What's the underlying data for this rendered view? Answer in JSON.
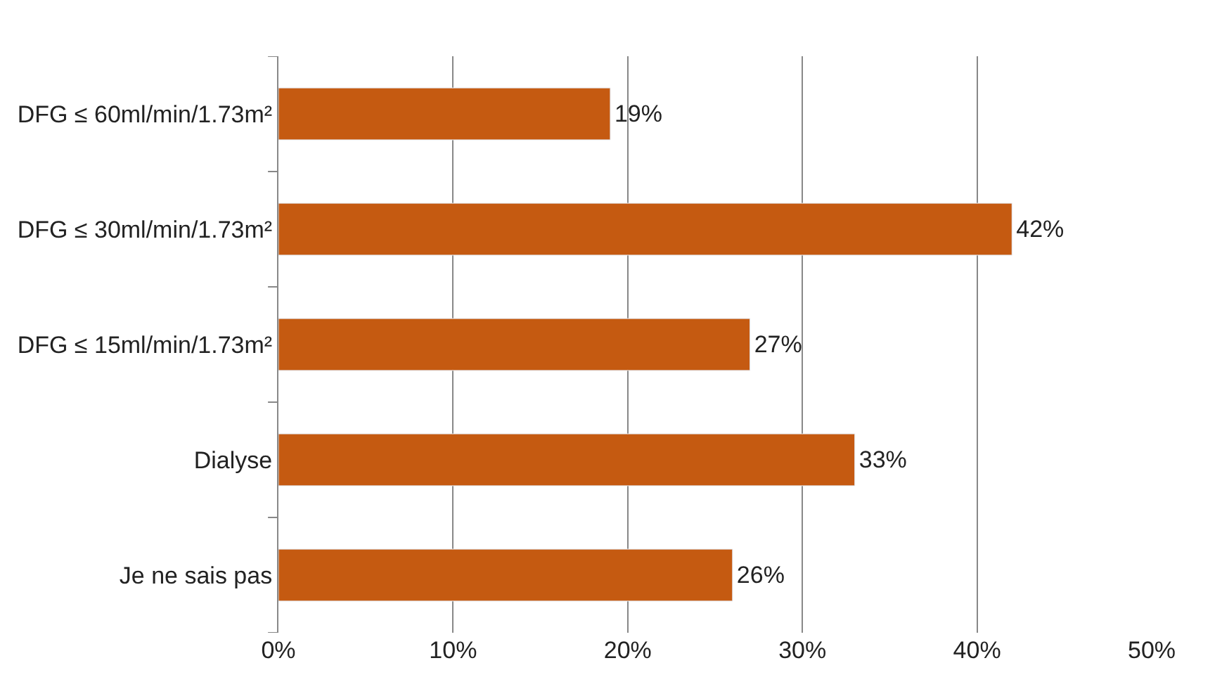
{
  "chart_data": {
    "type": "bar",
    "orientation": "horizontal",
    "categories": [
      "DFG ≤ 60ml/min/1.73m²",
      "DFG ≤ 30ml/min/1.73m²",
      "DFG ≤ 15ml/min/1.73m²",
      "Dialyse",
      "Je ne sais pas"
    ],
    "values": [
      19,
      42,
      27,
      33,
      26
    ],
    "value_labels": [
      "19%",
      "42%",
      "27%",
      "33%",
      "26%"
    ],
    "color": "#c55a11",
    "xlim": [
      0,
      50
    ],
    "xticks": [
      {
        "value": 0,
        "label": "0%"
      },
      {
        "value": 10,
        "label": "10%"
      },
      {
        "value": 20,
        "label": "20%"
      },
      {
        "value": 30,
        "label": "30%"
      },
      {
        "value": 40,
        "label": "40%"
      },
      {
        "value": 50,
        "label": "50%"
      }
    ],
    "grid": "x"
  }
}
